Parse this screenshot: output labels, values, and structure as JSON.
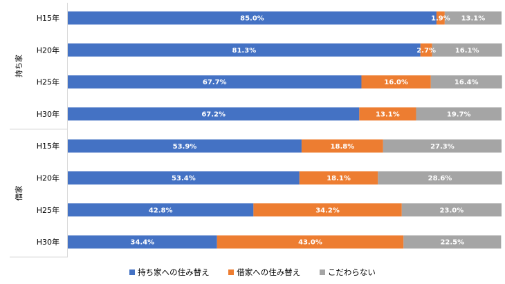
{
  "chart_data": {
    "type": "bar",
    "orientation": "horizontal",
    "stacked": "percent",
    "groups": [
      {
        "name": "持ち家",
        "categories": [
          "H15年",
          "H20年",
          "H25年",
          "H30年"
        ]
      },
      {
        "name": "借家",
        "categories": [
          "H15年",
          "H20年",
          "H25年",
          "H30年"
        ]
      }
    ],
    "categories": [
      "H15年",
      "H20年",
      "H25年",
      "H30年",
      "H15年",
      "H20年",
      "H25年",
      "H30年"
    ],
    "series": [
      {
        "name": "持ち家への住み替え",
        "color": "#4472C4",
        "values": [
          85.0,
          81.3,
          67.7,
          67.2,
          53.9,
          53.4,
          42.8,
          34.4
        ],
        "labels": [
          "85.0%",
          "81.3%",
          "67.7%",
          "67.2%",
          "53.9%",
          "53.4%",
          "42.8%",
          "34.4%"
        ]
      },
      {
        "name": "借家への住み替え",
        "color": "#ED7D31",
        "values": [
          1.9,
          2.7,
          16.0,
          13.1,
          18.8,
          18.1,
          34.2,
          43.0
        ],
        "labels": [
          "1.9%",
          "2.7%",
          "16.0%",
          "13.1%",
          "18.8%",
          "18.1%",
          "34.2%",
          "43.0%"
        ]
      },
      {
        "name": "こだわらない",
        "color": "#A5A5A5",
        "values": [
          13.1,
          16.1,
          16.4,
          19.7,
          27.3,
          28.6,
          23.0,
          22.5
        ],
        "labels": [
          "13.1%",
          "16.1%",
          "16.4%",
          "19.7%",
          "27.3%",
          "28.6%",
          "23.0%",
          "22.5%"
        ]
      }
    ],
    "xlim": [
      0,
      100
    ],
    "legend_position": "bottom",
    "grid": false
  }
}
